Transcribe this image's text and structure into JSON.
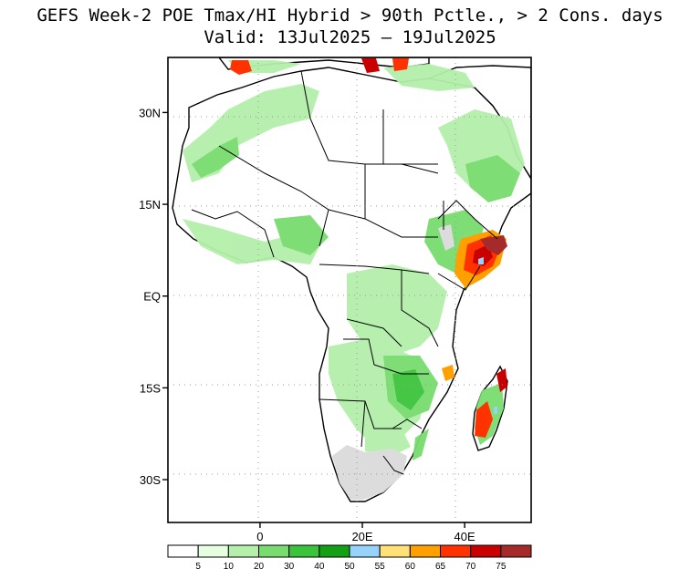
{
  "title": {
    "line1": "GEFS Week-2 POE Tmax/HI Hybrid > 90th Pctle., > 2 Cons. days",
    "line2": "Valid: 13Jul2025 – 19Jul2025"
  },
  "map": {
    "region": "Africa",
    "lon_range": [
      -18,
      53
    ],
    "lat_range": [
      -37,
      39
    ],
    "lat_ticks": [
      {
        "value": 30,
        "label": "30N"
      },
      {
        "value": 15,
        "label": "15N"
      },
      {
        "value": 0,
        "label": "EQ"
      },
      {
        "value": -15,
        "label": "15S"
      },
      {
        "value": -30,
        "label": "30S"
      }
    ],
    "lon_ticks": [
      {
        "value": 0,
        "label": "0"
      },
      {
        "value": 20,
        "label": "20E"
      },
      {
        "value": 40,
        "label": "40E"
      }
    ],
    "grid": "dotted"
  },
  "colorbar": {
    "colors": [
      "#ffffff",
      "#e6ffe1",
      "#b4f0aa",
      "#78dc6e",
      "#3cc33c",
      "#14a014",
      "#96d2fa",
      "#ffe178",
      "#ffa000",
      "#ff3200",
      "#c80000",
      "#a52a2a"
    ],
    "labels": [
      "5",
      "10",
      "20",
      "30",
      "40",
      "50",
      "55",
      "60",
      "65",
      "70",
      "75"
    ]
  },
  "colors": {
    "land_outline": "#000000",
    "no_data_gray": "#dcdcdc"
  }
}
